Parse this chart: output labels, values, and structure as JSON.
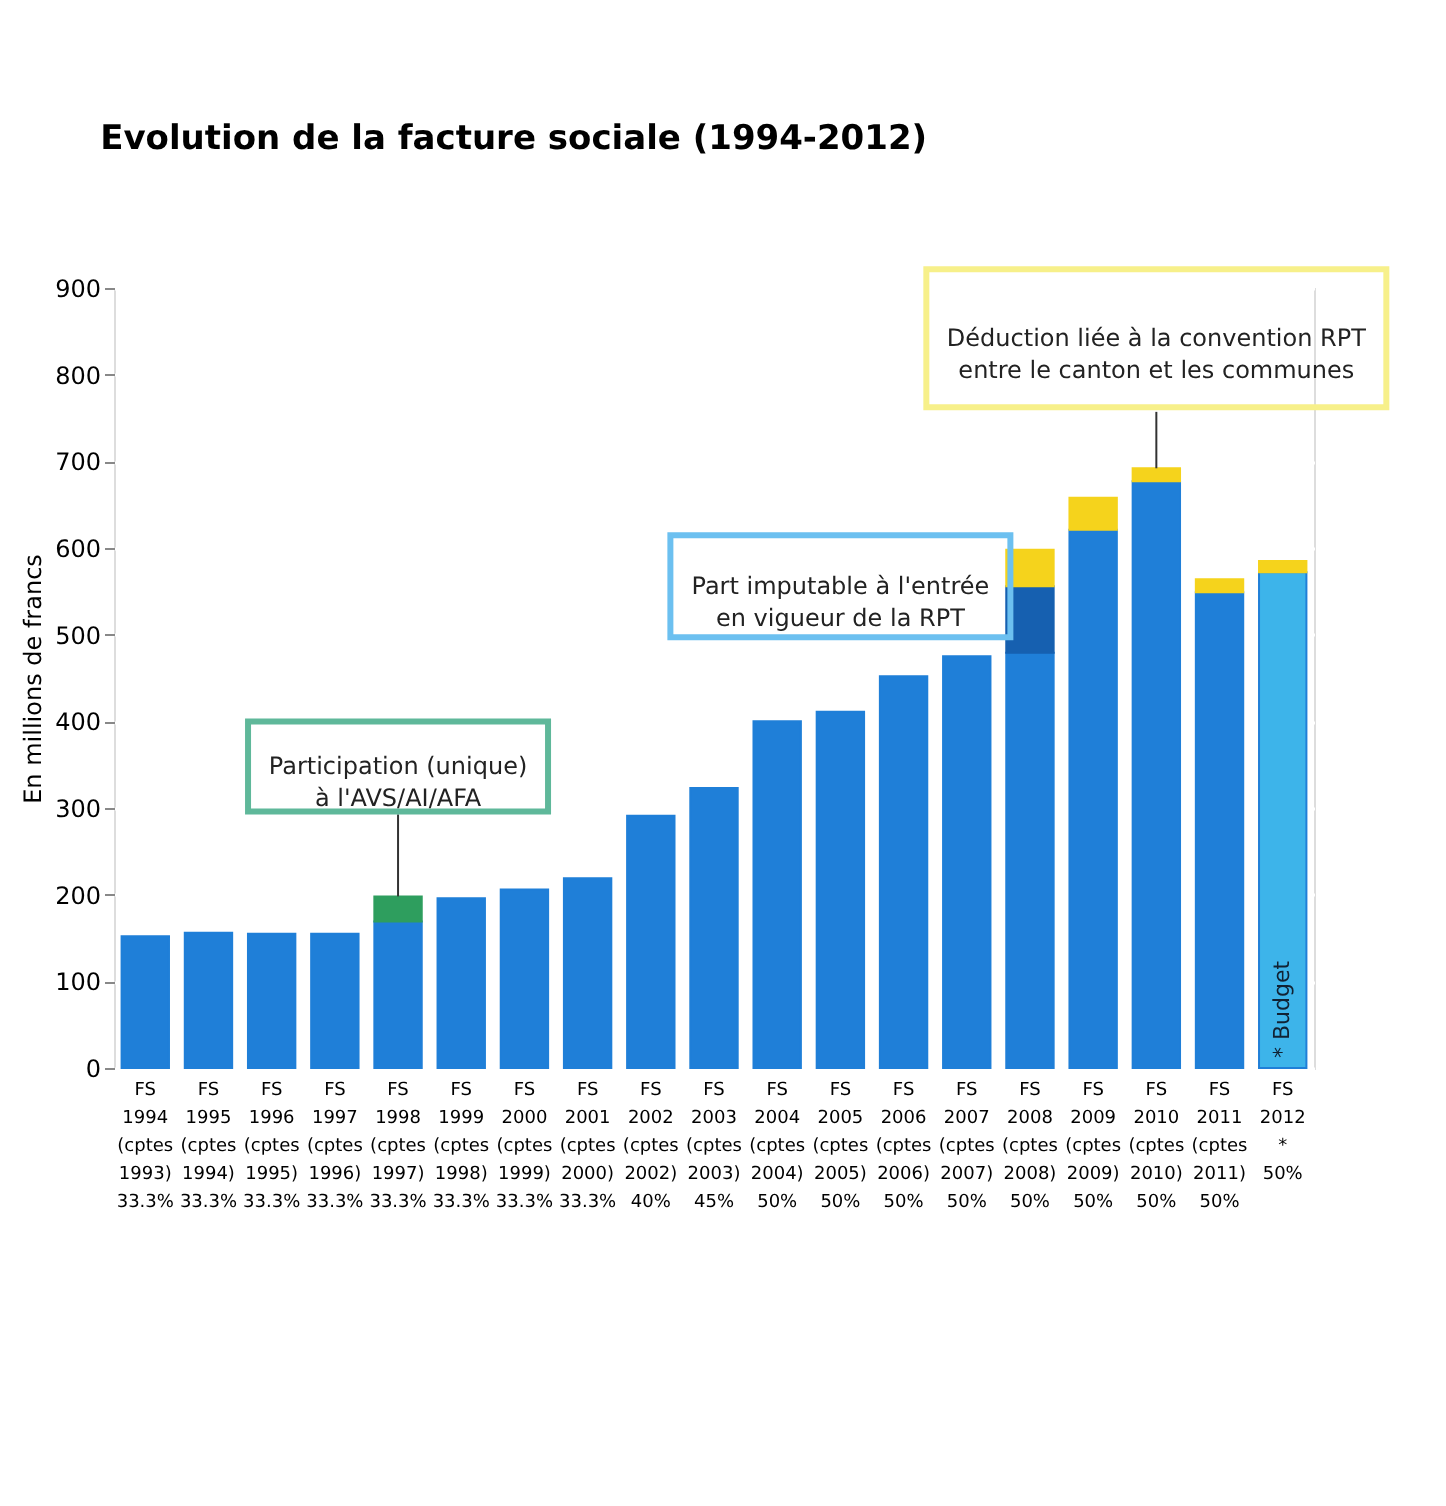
{
  "chart_data": {
    "type": "bar",
    "stacked": true,
    "title": "Evolution de la facture sociale (1994-2012)",
    "ylabel": "En millions de francs",
    "categories": [
      "FS\n1994\n\n(cptes\n1993)\n\n33.3%",
      "FS\n1995\n\n(cptes\n1994)\n\n33.3%",
      "FS\n1996\n\n(cptes\n1995)\n\n33.3%",
      "FS\n1997\n\n(cptes\n1996)\n\n33.3%",
      "FS\n1998\n\n(cptes\n1997)\n\n33.3%",
      "FS\n1999\n\n(cptes\n1998)\n\n33.3%",
      "FS\n2000\n\n(cptes\n1999)\n\n33.3%",
      "FS\n2001\n\n(cptes\n2000)\n\n33.3%",
      "FS\n2002\n\n(cptes\n2002)\n\n40%",
      "FS\n2003\n\n(cptes\n2003)\n\n45%",
      "FS\n2004\n\n(cptes\n2004)\n\n50%",
      "FS\n2005\n\n(cptes\n2005)\n\n50%",
      "FS\n2006\n\n(cptes\n2006)\n\n50%",
      "FS\n2007\n\n(cptes\n2007)\n\n50%",
      "FS\n2008\n\n(cptes\n2008)\n\n50%",
      "FS\n2009\n\n(cptes\n2009)\n\n50%",
      "FS\n2010\n\n(cptes\n2010)\n\n50%",
      "FS\n2011\n\n(cptes\n2011)\n\n50%",
      "FS\n2012\n\n*\n\n50%"
    ],
    "series": [
      {
        "color": "#1f7fd8",
        "colors": [
          "#1f7fd8",
          "#1f7fd8",
          "#1f7fd8",
          "#1f7fd8",
          "#1f7fd8",
          "#1f7fd8",
          "#1f7fd8",
          "#1f7fd8",
          "#1f7fd8",
          "#1f7fd8",
          "#1f7fd8",
          "#1f7fd8",
          "#1f7fd8",
          "#1f7fd8",
          "#1f7fd8",
          "#1f7fd8",
          "#1f7fd8",
          "#1f7fd8",
          "#3db4ea"
        ],
        "values": [
          152,
          156,
          155,
          155,
          169,
          196,
          206,
          219,
          291,
          323,
          400,
          411,
          452,
          475,
          479,
          621,
          677,
          549,
          572
        ]
      },
      {
        "color": "#2e9e5e",
        "values": [
          null,
          null,
          null,
          null,
          29,
          null,
          null,
          null,
          null,
          null,
          null,
          null,
          null,
          null,
          null,
          null,
          null,
          null,
          null
        ]
      },
      {
        "color": "#1660b0",
        "values": [
          null,
          null,
          null,
          null,
          null,
          null,
          null,
          null,
          null,
          null,
          null,
          null,
          null,
          null,
          77,
          null,
          null,
          null,
          null
        ]
      },
      {
        "color": "#f5d31c",
        "values": [
          null,
          null,
          null,
          null,
          null,
          null,
          null,
          null,
          null,
          null,
          null,
          null,
          null,
          null,
          42,
          37,
          15,
          15,
          13
        ]
      }
    ],
    "ylim": [
      0,
      900
    ],
    "yticks": [
      0,
      100,
      200,
      300,
      400,
      500,
      600,
      700,
      800,
      900
    ],
    "grid": "y",
    "annotations": [
      {
        "text": "Participation (unique)\nà l'AVS/AI/AFA",
        "x": "FS\n1998\n\n(cptes\n1997)\n\n33.3%",
        "y": 198
      },
      {
        "text": "Part imputable à l'entrée\nen vigueur de la RPT",
        "x": "FS\n2008\n\n(cptes\n2008)\n\n50%",
        "y": 556
      },
      {
        "text": "Déduction liée à la convention RPT\nentre le canton et les communes",
        "x": "FS\n2010\n\n(cptes\n2010)\n\n50%",
        "y": 692
      },
      "* Budget"
    ]
  }
}
